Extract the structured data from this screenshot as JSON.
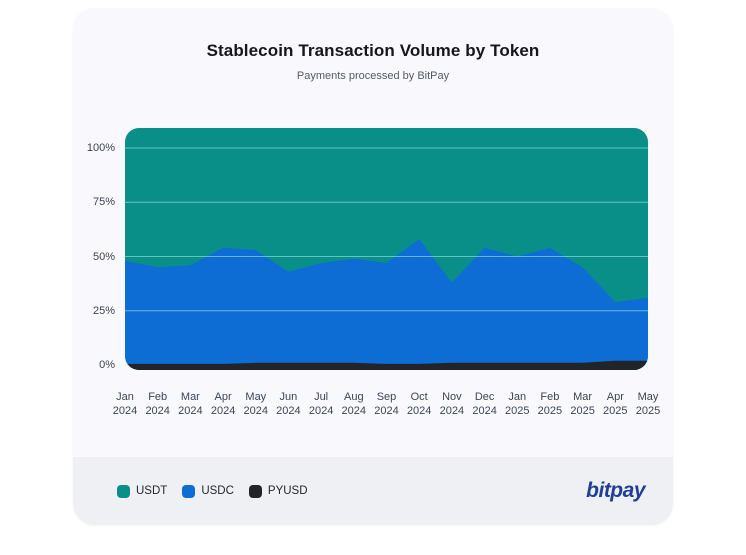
{
  "header": {
    "title": "Stablecoin Transaction Volume by Token",
    "subtitle": "Payments processed by BitPay"
  },
  "footer": {
    "logo_text": "bitpay"
  },
  "colors": {
    "card_bg": "#f9f9fd",
    "footer_bg": "#eef0f4",
    "usdt": "#0a8f88",
    "usdc": "#0e6dd5",
    "pyusd": "#212529",
    "gridline": "rgba(173,243,238,0.55)",
    "logo": "#1e3f97"
  },
  "chart_data": {
    "type": "area",
    "stacked": true,
    "percent": true,
    "title": "Stablecoin Transaction Volume by Token",
    "subtitle": "Payments processed by BitPay",
    "categories": [
      "Jan 2024",
      "Feb 2024",
      "Mar 2024",
      "Apr 2024",
      "May 2024",
      "Jun 2024",
      "Jul 2024",
      "Aug 2024",
      "Sep 2024",
      "Oct 2024",
      "Nov 2024",
      "Dec 2024",
      "Jan 2025",
      "Feb 2025",
      "Mar 2025",
      "Apr 2025",
      "May 2025"
    ],
    "series": [
      {
        "name": "USDT",
        "color": "#0a8f88",
        "values": [
          52,
          55,
          54,
          46,
          47,
          57,
          53,
          51,
          53,
          42,
          62,
          46,
          50,
          46,
          55,
          71,
          69
        ]
      },
      {
        "name": "USDC",
        "color": "#0e6dd5",
        "values": [
          47.5,
          44.5,
          45.5,
          53.5,
          52,
          42,
          46,
          48,
          46.5,
          57.5,
          37,
          53,
          49,
          53,
          44,
          27,
          29
        ]
      },
      {
        "name": "PYUSD",
        "color": "#212529",
        "values": [
          0.5,
          0.5,
          0.5,
          0.5,
          1,
          1,
          1,
          1,
          0.5,
          0.5,
          1,
          1,
          1,
          1,
          1,
          2,
          2
        ]
      }
    ],
    "yticks": [
      {
        "label": "100%",
        "value": 100
      },
      {
        "label": "75%",
        "value": 75
      },
      {
        "label": "50%",
        "value": 50
      },
      {
        "label": "25%",
        "value": 25
      },
      {
        "label": "0%",
        "value": 0
      }
    ],
    "ylim": [
      0,
      100
    ],
    "grid": true,
    "legend_position": "bottom-left"
  }
}
